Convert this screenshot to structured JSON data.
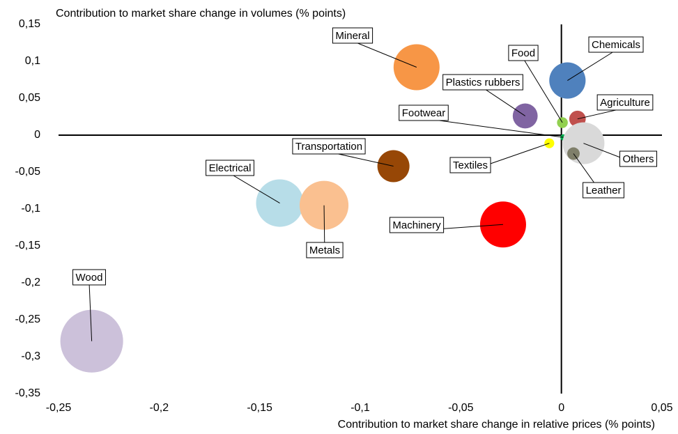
{
  "chart_data": {
    "type": "bubble",
    "title": "Contribution to market share change in volumes (% points)",
    "x_label": "Contribution to market share change in relative prices (% points)",
    "xlim": [
      -0.25,
      0.05
    ],
    "xticks": [
      {
        "value": -0.25,
        "label": "-0,25"
      },
      {
        "value": -0.2,
        "label": "-0,2"
      },
      {
        "value": -0.15,
        "label": "-0,15"
      },
      {
        "value": -0.1,
        "label": "-0,1"
      },
      {
        "value": -0.05,
        "label": "-0,05"
      },
      0,
      {
        "value": 0.05,
        "label": "0,05"
      }
    ],
    "ylim": [
      -0.35,
      0.15
    ],
    "yticks": [
      {
        "value": 0.15,
        "label": "0,15"
      },
      {
        "value": 0.1,
        "label": "0,1"
      },
      {
        "value": 0.05,
        "label": "0,05"
      },
      0,
      {
        "value": -0.05,
        "label": "-0,05"
      },
      {
        "value": -0.1,
        "label": "-0,1"
      },
      {
        "value": -0.15,
        "label": "-0,15"
      },
      {
        "value": -0.2,
        "label": "-0,2"
      },
      {
        "value": -0.25,
        "label": "-0,25"
      },
      {
        "value": -0.3,
        "label": "-0,3"
      },
      {
        "value": -0.35,
        "label": "-0,35"
      }
    ],
    "series": [
      {
        "name": "Mineral",
        "color": "#f79646",
        "x": [
          -0.072
        ],
        "values": [
          0.092
        ],
        "sizes": [
          10.9
        ]
      },
      {
        "name": "Chemicals",
        "color": "#4f81bd",
        "x": [
          0.003
        ],
        "values": [
          0.074
        ],
        "sizes": [
          6.8
        ]
      },
      {
        "name": "Food",
        "color": "#92d050",
        "x": [
          0.0005
        ],
        "values": [
          0.017
        ],
        "sizes": [
          0.6
        ]
      },
      {
        "name": "Plastics rubbers",
        "color": "#8064a2",
        "x": [
          -0.018
        ],
        "values": [
          0.026
        ],
        "sizes": [
          3.2
        ]
      },
      {
        "name": "Agriculture",
        "color": "#c0504d",
        "x": [
          0.008
        ],
        "values": [
          0.022
        ],
        "sizes": [
          1.4
        ]
      },
      {
        "name": "Footwear",
        "color": "#00b050",
        "x": [
          0.001
        ],
        "values": [
          -0.003
        ],
        "sizes": [
          0.2
        ]
      },
      {
        "name": "Textiles",
        "color": "#ffff00",
        "x": [
          -0.006
        ],
        "values": [
          -0.011
        ],
        "sizes": [
          0.5
        ]
      },
      {
        "name": "Others",
        "color": "#d9d9d9",
        "x": [
          0.011
        ],
        "values": [
          -0.011
        ],
        "sizes": [
          9
        ]
      },
      {
        "name": "Leather",
        "color": "#7f7f6a",
        "x": [
          0.006
        ],
        "values": [
          -0.025
        ],
        "sizes": [
          0.8
        ]
      },
      {
        "name": "Transportation",
        "color": "#974706",
        "x": [
          -0.0835
        ],
        "values": [
          -0.042
        ],
        "sizes": [
          5.3
        ]
      },
      {
        "name": "Electrical",
        "color": "#b7dde8",
        "x": [
          -0.14
        ],
        "values": [
          -0.092
        ],
        "sizes": [
          11.6
        ]
      },
      {
        "name": "Metals",
        "color": "#fac090",
        "x": [
          -0.118
        ],
        "values": [
          -0.095
        ],
        "sizes": [
          12.3
        ]
      },
      {
        "name": "Machinery",
        "color": "#ff0000",
        "x": [
          -0.029
        ],
        "values": [
          -0.121
        ],
        "sizes": [
          10.9
        ]
      },
      {
        "name": "Wood",
        "color": "#ccc1da",
        "x": [
          -0.2335
        ],
        "values": [
          -0.279
        ],
        "sizes": [
          20.3
        ]
      }
    ]
  }
}
